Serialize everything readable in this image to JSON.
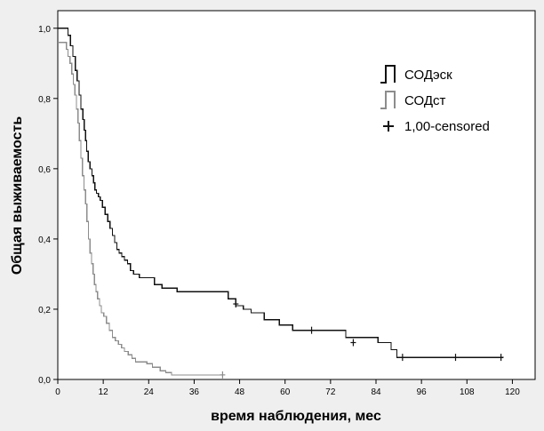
{
  "chart_data": {
    "type": "line",
    "subtype": "kaplan-meier-step",
    "xlabel": "время наблюдения, мес",
    "ylabel": "Общая выживаемость",
    "xlim": [
      0,
      126
    ],
    "ylim": [
      0,
      1.05
    ],
    "x_ticks": [
      0,
      12,
      24,
      36,
      48,
      60,
      72,
      84,
      96,
      108,
      120
    ],
    "x_tick_labels": [
      "0",
      "12",
      "24",
      "36",
      "48",
      "60",
      "72",
      "84",
      "96",
      "108",
      "120"
    ],
    "y_ticks": [
      0,
      0.2,
      0.4,
      0.6,
      0.8,
      1.0
    ],
    "y_tick_labels": [
      "0,0",
      "0,2",
      "0,4",
      "0,6",
      "0,8",
      "1,0"
    ],
    "legend_position": "top-right",
    "legend": [
      {
        "label": "СОДэск",
        "marker": "step",
        "color": "#111111"
      },
      {
        "label": "СОДст",
        "marker": "step",
        "color": "#8c8c8c"
      },
      {
        "label": "1,00-censored",
        "marker": "plus",
        "color": "#111111"
      }
    ],
    "series": [
      {
        "name": "СОДэск",
        "color": "#111111",
        "x": [
          0,
          2.7,
          3.3,
          4,
          4.6,
          5.1,
          5.6,
          6.1,
          6.6,
          7,
          7.3,
          7.6,
          8,
          8.5,
          9,
          9.4,
          9.8,
          10.2,
          10.7,
          11.2,
          11.8,
          12.5,
          13.2,
          13.8,
          14.4,
          15,
          15.6,
          16.2,
          16.9,
          17.6,
          18.4,
          19.2,
          20,
          21.5,
          25.5,
          27.5,
          31.5,
          45,
          47,
          49,
          51,
          54.5,
          58.5,
          62,
          66,
          76,
          84.5,
          88,
          89.5,
          117.5
        ],
        "y": [
          1.0,
          0.98,
          0.95,
          0.92,
          0.88,
          0.85,
          0.81,
          0.77,
          0.74,
          0.71,
          0.68,
          0.65,
          0.62,
          0.6,
          0.58,
          0.56,
          0.54,
          0.53,
          0.52,
          0.51,
          0.49,
          0.47,
          0.45,
          0.43,
          0.41,
          0.39,
          0.37,
          0.36,
          0.35,
          0.34,
          0.33,
          0.31,
          0.3,
          0.29,
          0.27,
          0.26,
          0.25,
          0.23,
          0.21,
          0.2,
          0.19,
          0.17,
          0.155,
          0.14,
          0.14,
          0.12,
          0.105,
          0.085,
          0.063,
          0.063
        ],
        "censored_x": [
          47,
          67,
          78,
          91,
          105,
          117
        ],
        "censored_y": [
          0.215,
          0.14,
          0.105,
          0.063,
          0.063,
          0.063
        ]
      },
      {
        "name": "СОДст",
        "color": "#8c8c8c",
        "x": [
          0,
          2.3,
          2.7,
          3.2,
          3.7,
          4.1,
          4.5,
          4.9,
          5.3,
          5.7,
          6.1,
          6.5,
          6.9,
          7.3,
          7.7,
          8.1,
          8.5,
          8.9,
          9.3,
          9.7,
          10.1,
          10.5,
          11,
          11.5,
          12.1,
          12.8,
          13.6,
          14.4,
          15.2,
          16,
          16.8,
          17.6,
          18.6,
          19.6,
          20.5,
          23.5,
          25,
          27,
          28.5,
          30,
          43.5
        ],
        "y": [
          0.96,
          0.94,
          0.92,
          0.9,
          0.87,
          0.84,
          0.81,
          0.77,
          0.73,
          0.68,
          0.63,
          0.58,
          0.54,
          0.5,
          0.45,
          0.4,
          0.36,
          0.33,
          0.3,
          0.27,
          0.25,
          0.23,
          0.21,
          0.19,
          0.18,
          0.16,
          0.14,
          0.12,
          0.11,
          0.1,
          0.09,
          0.08,
          0.07,
          0.06,
          0.05,
          0.045,
          0.035,
          0.025,
          0.02,
          0.013,
          0.013
        ],
        "censored_x": [
          43.5
        ],
        "censored_y": [
          0.013
        ]
      }
    ]
  }
}
